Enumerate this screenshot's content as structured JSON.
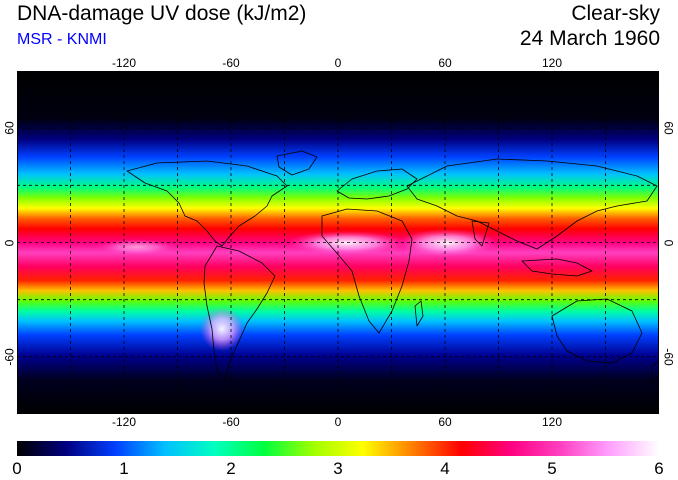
{
  "title": "DNA-damage UV dose (kJ/m2)",
  "subtitle": "MSR - KNMI",
  "sky_condition": "Clear-sky",
  "date": "24 March 1960",
  "map": {
    "projection": "equirectangular",
    "lon_range": [
      -180,
      180
    ],
    "lat_range": [
      -90,
      90
    ],
    "lon_ticks": [
      {
        "value": -120,
        "label": "-120"
      },
      {
        "value": -60,
        "label": "-60"
      },
      {
        "value": 0,
        "label": "0"
      },
      {
        "value": 60,
        "label": "60"
      },
      {
        "value": 120,
        "label": "120"
      }
    ],
    "lat_ticks": [
      {
        "value": 60,
        "label": "60"
      },
      {
        "value": 0,
        "label": "0"
      },
      {
        "value": -60,
        "label": "-60"
      }
    ],
    "grid_lon": [
      -150,
      -120,
      -90,
      -60,
      -30,
      0,
      30,
      60,
      90,
      120,
      150
    ],
    "grid_lat": [
      -60,
      -30,
      0,
      30,
      60
    ],
    "grid": "dashed"
  },
  "colorbar": {
    "min": 0,
    "max": 6,
    "labels": [
      "0",
      "1",
      "2",
      "3",
      "4",
      "5",
      "6"
    ],
    "stops": [
      "#000000",
      "#000080",
      "#0040ff",
      "#00c0ff",
      "#00ffc0",
      "#00ff40",
      "#a0ff00",
      "#ffff00",
      "#ff8000",
      "#ff0000",
      "#ff0080",
      "#ff40c0",
      "#ffa0ff",
      "#ffffff"
    ]
  }
}
